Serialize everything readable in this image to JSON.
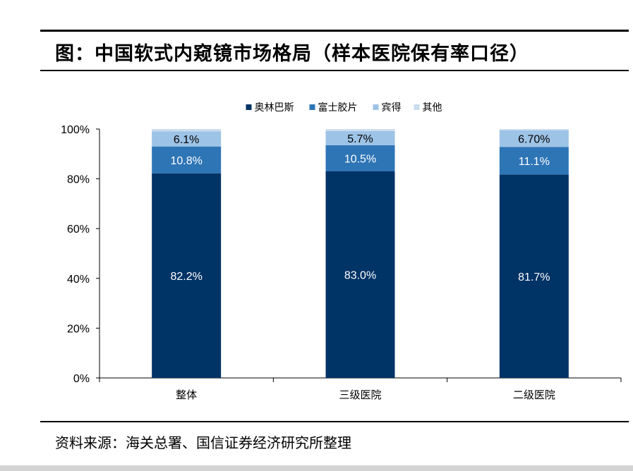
{
  "title": "图：中国软式内窥镜市场格局（样本医院保有率口径）",
  "source": "资料来源：海关总署、国信证券经济研究所整理",
  "chart_data": {
    "type": "bar",
    "stacked": true,
    "categories": [
      "整体",
      "三级医院",
      "二级医院"
    ],
    "series": [
      {
        "name": "奥林巴斯",
        "color": "#003366",
        "values": [
          82.2,
          83.0,
          81.7
        ],
        "labels": [
          "82.2%",
          "83.0%",
          "81.7%"
        ]
      },
      {
        "name": "富士胶片",
        "color": "#2e75b6",
        "values": [
          10.8,
          10.5,
          11.1
        ],
        "labels": [
          "10.8%",
          "10.5%",
          "11.1%"
        ]
      },
      {
        "name": "宾得",
        "color": "#9dc3e6",
        "values": [
          6.1,
          5.7,
          6.7
        ],
        "labels": [
          "6.1%",
          "5.7%",
          "6.70%"
        ]
      },
      {
        "name": "其他",
        "color": "#c9dcee",
        "values": [
          0.9,
          0.8,
          0.5
        ],
        "labels": [
          "",
          "",
          ""
        ]
      }
    ],
    "ylim": [
      0,
      100
    ],
    "yticks": [
      "0%",
      "20%",
      "40%",
      "60%",
      "80%",
      "100%"
    ],
    "legend": "top-center",
    "grid": false
  }
}
